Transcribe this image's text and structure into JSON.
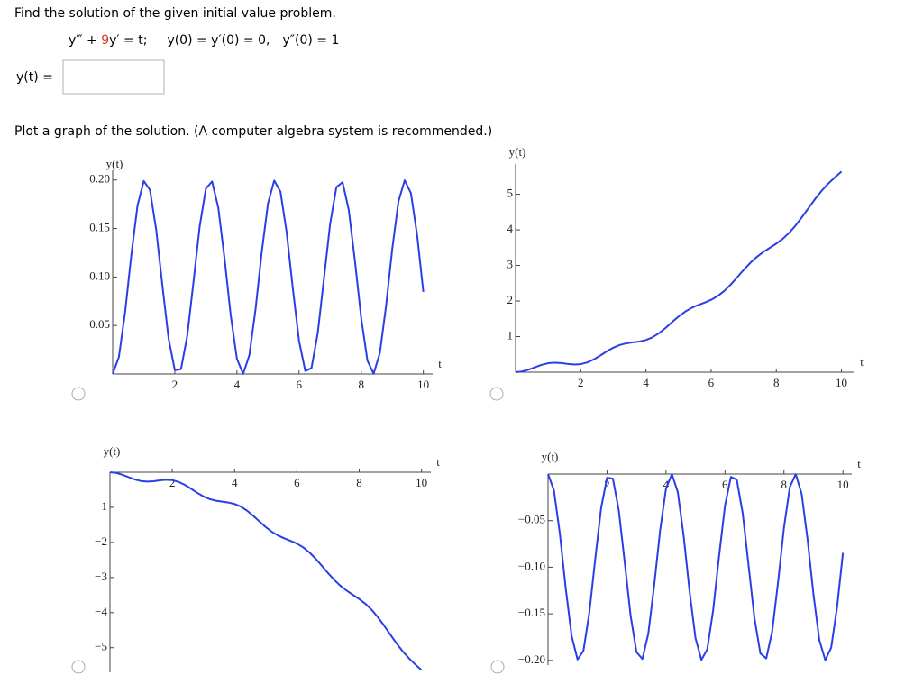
{
  "question": "Find the solution of the given initial value problem.",
  "equation": [
    "y‴ + ",
    "9",
    "y′ = t;",
    "y(0) = y′(0) = 0,",
    "y″(0) = 1"
  ],
  "answer_label": "y(t) =",
  "plot_prompt": "Plot a graph of the solution. (A computer algebra system is recommended.)",
  "chart_data": [
    {
      "type": "line",
      "y_label": "y(t)",
      "x_label": "t",
      "color": "#2b3ee6",
      "xlim": [
        0,
        10.3
      ],
      "ylim": [
        0,
        0.21
      ],
      "xticks": [
        2,
        4,
        6,
        8,
        10
      ],
      "yticks": [
        {
          "value": 0.05,
          "label": "0.05"
        },
        {
          "value": 0.1,
          "label": "0.10"
        },
        {
          "value": 0.15,
          "label": "0.15"
        },
        {
          "value": 0.2,
          "label": "0.20"
        }
      ],
      "x": [
        0,
        0.2,
        0.4,
        0.6,
        0.8,
        1,
        1.2,
        1.4,
        1.6,
        1.8,
        2,
        2.2,
        2.4,
        2.6,
        2.8,
        3,
        3.2,
        3.4,
        3.6,
        3.8,
        4,
        4.2,
        4.4,
        4.6,
        4.8,
        5,
        5.2,
        5.4,
        5.6,
        5.8,
        6,
        6.2,
        6.4,
        6.6,
        6.8,
        7,
        7.2,
        7.4,
        7.6,
        7.8,
        8,
        8.2,
        8.4,
        8.6,
        8.8,
        9,
        9.2,
        9.4,
        9.6,
        9.8,
        10
      ],
      "values": [
        0,
        0.0175,
        0.0638,
        0.1227,
        0.1737,
        0.199,
        0.1897,
        0.149,
        0.0913,
        0.0365,
        0.004,
        0.005,
        0.0392,
        0.0946,
        0.1519,
        0.1911,
        0.1985,
        0.1714,
        0.1194,
        0.0606,
        0.0156,
        0.0001,
        0.0194,
        0.0669,
        0.126,
        0.176,
        0.1994,
        0.1881,
        0.146,
        0.0879,
        0.034,
        0.0031,
        0.0061,
        0.0419,
        0.098,
        0.1548,
        0.1925,
        0.1978,
        0.169,
        0.1161,
        0.0576,
        0.0139,
        0.0002,
        0.0215,
        0.0701,
        0.1292,
        0.1781,
        0.1997,
        0.1865,
        0.1431,
        0.0846
      ]
    },
    {
      "type": "line",
      "y_label": "y(t)",
      "x_label": "t",
      "color": "#2b3ee6",
      "xlim": [
        0,
        10.4
      ],
      "ylim": [
        0,
        5.85
      ],
      "xticks": [
        2,
        4,
        6,
        8,
        10
      ],
      "yticks": [
        1,
        2,
        3,
        4,
        5
      ],
      "x": [
        0,
        0.2,
        0.4,
        0.6,
        0.8,
        1,
        1.2,
        1.4,
        1.6,
        1.8,
        2,
        2.2,
        2.4,
        2.6,
        2.8,
        3,
        3.2,
        3.4,
        3.6,
        3.8,
        4,
        4.2,
        4.4,
        4.6,
        4.8,
        5,
        5.2,
        5.4,
        5.6,
        5.8,
        6,
        6.2,
        6.4,
        6.6,
        6.8,
        7,
        7.2,
        7.4,
        7.6,
        7.8,
        8,
        8.2,
        8.4,
        8.6,
        8.8,
        9,
        9.2,
        9.4,
        9.6,
        9.8,
        10
      ],
      "values": [
        0,
        0.0195,
        0.0719,
        0.1412,
        0.2072,
        0.2522,
        0.2674,
        0.2561,
        0.2324,
        0.2161,
        0.2262,
        0.2738,
        0.3587,
        0.4691,
        0.5857,
        0.6888,
        0.765,
        0.8115,
        0.838,
        0.8621,
        0.9043,
        0.9801,
        1.0948,
        1.2417,
        1.4045,
        1.5628,
        1.6992,
        1.8058,
        1.8864,
        1.9557,
        2.0336,
        2.1387,
        2.2816,
        2.4614,
        2.6657,
        2.8751,
        3.0702,
        3.2376,
        3.3759,
        3.4947,
        3.6125,
        3.7493,
        3.9202,
        4.1301,
        4.3715,
        4.6277,
        4.8782,
        5.1062,
        5.3043,
        5.477,
        5.6392
      ]
    },
    {
      "type": "line",
      "y_label": "y(t)",
      "x_label": "t",
      "color": "#2b3ee6",
      "xlim": [
        0,
        10.3
      ],
      "ylim": [
        -5.7,
        0
      ],
      "xticks": [
        2,
        4,
        6,
        8,
        10
      ],
      "yticks": [
        {
          "value": -1,
          "label": "−1"
        },
        {
          "value": -2,
          "label": "−2"
        },
        {
          "value": -3,
          "label": "−3"
        },
        {
          "value": -4,
          "label": "−4"
        },
        {
          "value": -5,
          "label": "−5"
        }
      ],
      "x": [
        0,
        0.2,
        0.4,
        0.6,
        0.8,
        1,
        1.2,
        1.4,
        1.6,
        1.8,
        2,
        2.2,
        2.4,
        2.6,
        2.8,
        3,
        3.2,
        3.4,
        3.6,
        3.8,
        4,
        4.2,
        4.4,
        4.6,
        4.8,
        5,
        5.2,
        5.4,
        5.6,
        5.8,
        6,
        6.2,
        6.4,
        6.6,
        6.8,
        7,
        7.2,
        7.4,
        7.6,
        7.8,
        8,
        8.2,
        8.4,
        8.6,
        8.8,
        9,
        9.2,
        9.4,
        9.6,
        9.8,
        10
      ],
      "values": [
        0,
        -0.0195,
        -0.0719,
        -0.1412,
        -0.2072,
        -0.2522,
        -0.2674,
        -0.2561,
        -0.2324,
        -0.2161,
        -0.2262,
        -0.2738,
        -0.3587,
        -0.4691,
        -0.5857,
        -0.6888,
        -0.765,
        -0.8115,
        -0.838,
        -0.8621,
        -0.9043,
        -0.9801,
        -1.0948,
        -1.2417,
        -1.4045,
        -1.5628,
        -1.6992,
        -1.8058,
        -1.8864,
        -1.9557,
        -2.0336,
        -2.1387,
        -2.2816,
        -2.4614,
        -2.6657,
        -2.8751,
        -3.0702,
        -3.2376,
        -3.3759,
        -3.4947,
        -3.6125,
        -3.7493,
        -3.9202,
        -4.1301,
        -4.3715,
        -4.6277,
        -4.8782,
        -5.1062,
        -5.3043,
        -5.477,
        -5.6392
      ]
    },
    {
      "type": "line",
      "y_label": "y(t)",
      "x_label": "t",
      "color": "#2b3ee6",
      "xlim": [
        0,
        10.3
      ],
      "ylim": [
        -0.205,
        0
      ],
      "xticks": [
        2,
        4,
        6,
        8,
        10
      ],
      "yticks": [
        {
          "value": -0.05,
          "label": "−0.05"
        },
        {
          "value": -0.1,
          "label": "−0.10"
        },
        {
          "value": -0.15,
          "label": "−0.15"
        },
        {
          "value": -0.2,
          "label": "−0.20"
        }
      ],
      "x": [
        0,
        0.2,
        0.4,
        0.6,
        0.8,
        1,
        1.2,
        1.4,
        1.6,
        1.8,
        2,
        2.2,
        2.4,
        2.6,
        2.8,
        3,
        3.2,
        3.4,
        3.6,
        3.8,
        4,
        4.2,
        4.4,
        4.6,
        4.8,
        5,
        5.2,
        5.4,
        5.6,
        5.8,
        6,
        6.2,
        6.4,
        6.6,
        6.8,
        7,
        7.2,
        7.4,
        7.6,
        7.8,
        8,
        8.2,
        8.4,
        8.6,
        8.8,
        9,
        9.2,
        9.4,
        9.6,
        9.8,
        10
      ],
      "values": [
        0,
        -0.0175,
        -0.0638,
        -0.1227,
        -0.1737,
        -0.199,
        -0.1897,
        -0.149,
        -0.0913,
        -0.0365,
        -0.004,
        -0.005,
        -0.0392,
        -0.0946,
        -0.1519,
        -0.1911,
        -0.1985,
        -0.1714,
        -0.1194,
        -0.0606,
        -0.0156,
        -0.0001,
        -0.0194,
        -0.0669,
        -0.126,
        -0.176,
        -0.1994,
        -0.1881,
        -0.146,
        -0.0879,
        -0.034,
        -0.0031,
        -0.0061,
        -0.0419,
        -0.098,
        -0.1548,
        -0.1925,
        -0.1978,
        -0.169,
        -0.1161,
        -0.0576,
        -0.0139,
        -0.0002,
        -0.0215,
        -0.0701,
        -0.1292,
        -0.1781,
        -0.1997,
        -0.1865,
        -0.1431,
        -0.0846
      ]
    }
  ]
}
